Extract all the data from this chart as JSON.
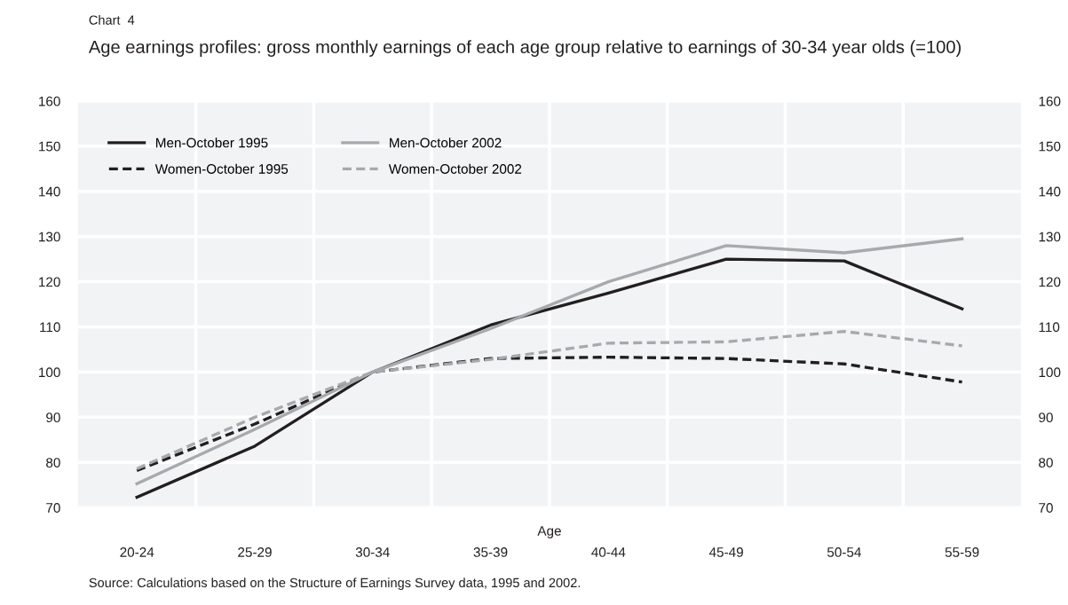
{
  "chart_data": {
    "type": "line",
    "title": "Chart  4",
    "subtitle": "Age earnings profiles: gross monthly earnings of each age group relative to earnings of 30-34 year olds (=100)",
    "xlabel": "Age",
    "categories": [
      "20-24",
      "25-29",
      "30-34",
      "35-39",
      "40-44",
      "45-49",
      "50-54",
      "55-59"
    ],
    "series": [
      {
        "name": "Men-October 1995",
        "color": "#231f20",
        "line_style": "solid",
        "values": [
          72.3,
          83.6,
          100,
          110.4,
          117.5,
          125,
          124.6,
          114
        ]
      },
      {
        "name": "Women-October 1995",
        "color": "#231f20",
        "line_style": "dashed",
        "values": [
          78.2,
          88.5,
          100,
          103,
          103.3,
          103,
          101.8,
          97.8
        ]
      },
      {
        "name": "Men-October 2002",
        "color": "#a7a9ac",
        "line_style": "solid",
        "values": [
          75.3,
          87.3,
          100,
          109.6,
          120,
          128,
          126.4,
          129.5
        ]
      },
      {
        "name": "Women-October 2002",
        "color": "#a7a9ac",
        "line_style": "dashed",
        "values": [
          78.6,
          90,
          100,
          102.8,
          106.4,
          106.7,
          109,
          105.8
        ]
      }
    ],
    "ylim": [
      70,
      160
    ],
    "yticks": [
      70,
      80,
      90,
      100,
      110,
      120,
      130,
      140,
      150,
      160
    ],
    "y2lim": [
      70,
      160
    ],
    "y2ticks": [
      70,
      80,
      90,
      100,
      110,
      120,
      130,
      140,
      150,
      160
    ],
    "grid": true,
    "legend": "top left",
    "marker": "none",
    "annotations": [
      "Source: Calculations based on the Structure of Earnings Survey data, 1995 and 2002."
    ]
  }
}
